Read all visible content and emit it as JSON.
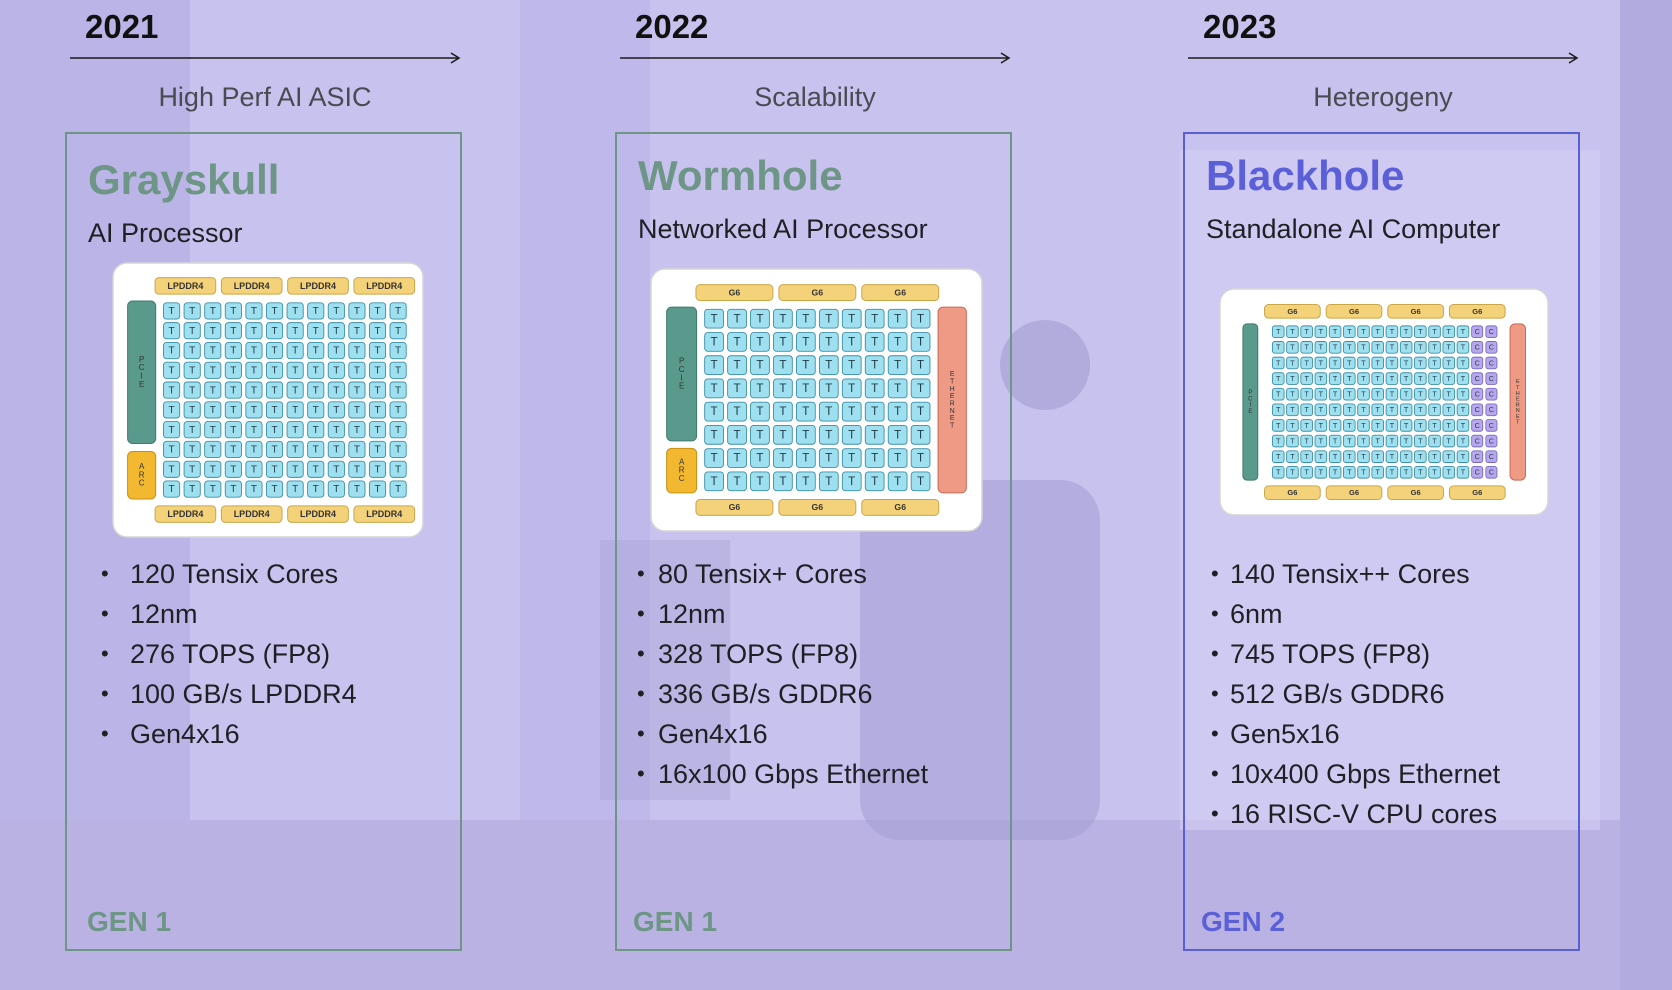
{
  "columns": [
    {
      "year": "2021",
      "theme": "High Perf AI ASIC",
      "name": "Grayskull",
      "subtitle": "AI Processor",
      "gen": "GEN 1",
      "accent": "#6e9687",
      "chip": {
        "mem_label": "LPDDR4",
        "left_blocks": [
          "PCIE",
          "ARC"
        ],
        "right_block": "",
        "tensix_label": "T",
        "cpu_label": "C",
        "grid_cols": 12,
        "grid_rows": 10,
        "cpu_cols": 0,
        "mem_count_per_side": 4
      },
      "specs": [
        "120 Tensix Cores",
        "12nm",
        "276 TOPS (FP8)",
        "100 GB/s LPDDR4",
        "Gen4x16"
      ]
    },
    {
      "year": "2022",
      "theme": "Scalability",
      "name": "Wormhole",
      "subtitle": "Networked AI Processor",
      "gen": "GEN 1",
      "accent": "#6e9687",
      "chip": {
        "mem_label": "G6",
        "left_blocks": [
          "PCIE",
          "ARC"
        ],
        "right_block": "ETHERNET",
        "tensix_label": "T",
        "cpu_label": "C",
        "grid_cols": 10,
        "grid_rows": 8,
        "cpu_cols": 0,
        "mem_count_per_side": 3
      },
      "specs": [
        "80 Tensix+ Cores",
        "12nm",
        "328 TOPS (FP8)",
        "336 GB/s GDDR6",
        "Gen4x16",
        "16x100 Gbps Ethernet"
      ]
    },
    {
      "year": "2023",
      "theme": "Heterogeny",
      "name": "Blackhole",
      "subtitle": "Standalone AI Computer",
      "gen": "GEN 2",
      "accent": "#5b5fd8",
      "chip": {
        "mem_label": "G6",
        "left_blocks": [
          "PCIE"
        ],
        "right_block": "ETHERNET",
        "tensix_label": "T",
        "cpu_label": "C",
        "grid_cols": 14,
        "grid_rows": 10,
        "cpu_cols": 2,
        "mem_count_per_side": 4
      },
      "specs": [
        "140 Tensix++ Cores",
        "6nm",
        "745 TOPS (FP8)",
        "512 GB/s GDDR6",
        "Gen5x16",
        "10x400 Gbps Ethernet",
        "16 RISC-V CPU cores"
      ]
    }
  ]
}
